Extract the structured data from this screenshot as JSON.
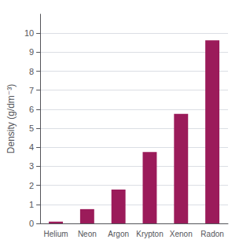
{
  "chart_data": {
    "type": "bar",
    "ylabel": "Density (g/dm⁻³)",
    "categories": [
      "Helium",
      "Neon",
      "Argon",
      "Krypton",
      "Xenon",
      "Radon"
    ],
    "values": [
      0.09,
      0.75,
      1.78,
      3.75,
      5.76,
      9.63
    ],
    "color": "#9B1B5A",
    "ylim": [
      0,
      11
    ],
    "yticks": [
      0,
      1,
      2,
      3,
      4,
      5,
      6,
      7,
      8,
      9,
      10
    ],
    "grid": true
  }
}
